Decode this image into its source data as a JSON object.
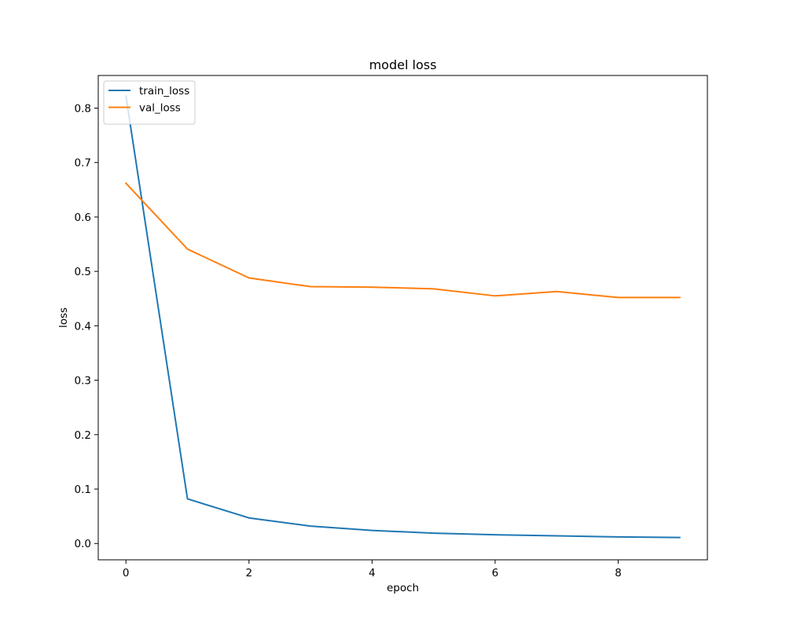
{
  "chart_data": {
    "type": "line",
    "title": "model loss",
    "xlabel": "epoch",
    "ylabel": "loss",
    "x": [
      0,
      1,
      2,
      3,
      4,
      5,
      6,
      7,
      8,
      9
    ],
    "xlim": [
      -0.45,
      9.45
    ],
    "ylim": [
      -0.03,
      0.86
    ],
    "xticks": [
      0,
      2,
      4,
      6,
      8
    ],
    "xtick_labels": [
      "0",
      "2",
      "4",
      "6",
      "8"
    ],
    "yticks": [
      0.0,
      0.1,
      0.2,
      0.3,
      0.4,
      0.5,
      0.6,
      0.7,
      0.8
    ],
    "ytick_labels": [
      "0.0",
      "0.1",
      "0.2",
      "0.3",
      "0.4",
      "0.5",
      "0.6",
      "0.7",
      "0.8"
    ],
    "grid": false,
    "legend_position": "top-left",
    "series": [
      {
        "name": "train_loss",
        "color": "#1f77b4",
        "values": [
          0.822,
          0.082,
          0.047,
          0.032,
          0.024,
          0.019,
          0.016,
          0.014,
          0.012,
          0.011
        ]
      },
      {
        "name": "val_loss",
        "color": "#ff7f0e",
        "values": [
          0.662,
          0.541,
          0.488,
          0.472,
          0.471,
          0.468,
          0.455,
          0.463,
          0.452,
          0.452
        ]
      }
    ]
  }
}
